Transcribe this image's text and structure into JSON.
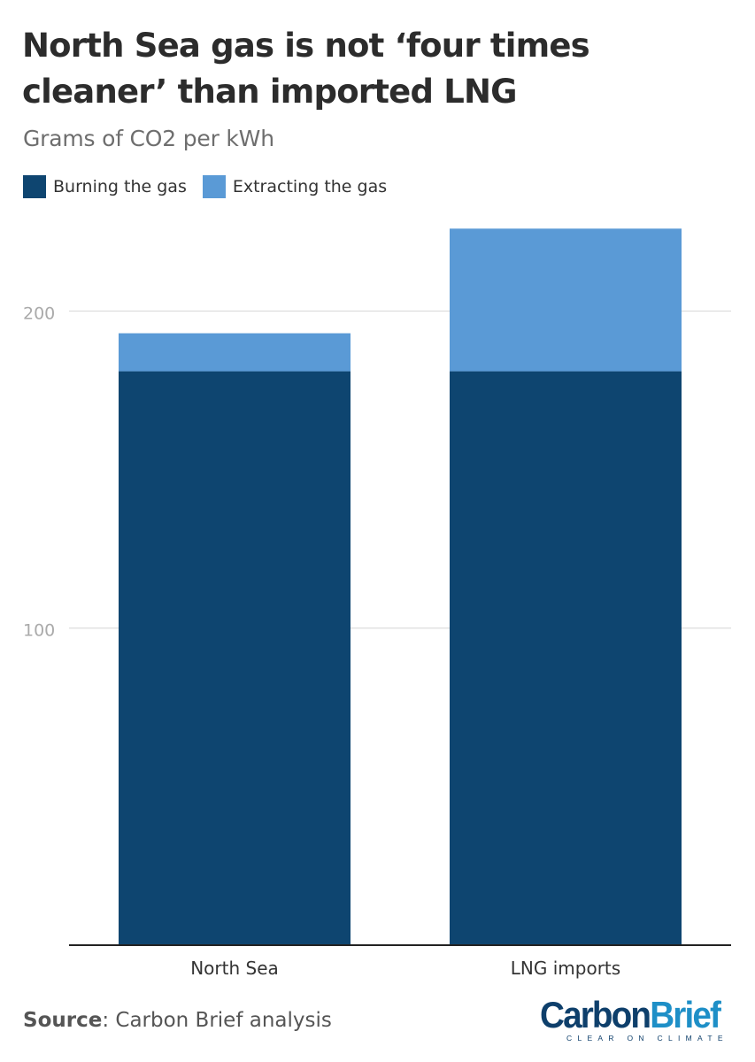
{
  "header": {
    "title": "North Sea gas is not ‘four times cleaner’ than imported LNG",
    "subtitle": "Grams of CO2 per kWh"
  },
  "legend": [
    {
      "label": "Burning the gas",
      "color": "#0e4570"
    },
    {
      "label": "Extracting the gas",
      "color": "#5a9ad6"
    }
  ],
  "chart_data": {
    "type": "bar",
    "stacked": true,
    "categories": [
      "North Sea",
      "LNG imports"
    ],
    "series": [
      {
        "name": "Burning the gas",
        "values": [
          181,
          181
        ],
        "color": "#0e4570"
      },
      {
        "name": "Extracting the gas",
        "values": [
          12,
          45
        ],
        "color": "#5a9ad6"
      }
    ],
    "ylim": [
      0,
      230
    ],
    "yticks": [
      100,
      200
    ],
    "grid": true,
    "legend_position": "top-left"
  },
  "footer": {
    "source_label": "Source",
    "source_text": ": Carbon Brief analysis"
  },
  "logo": {
    "carbon": "Carbon",
    "brief": "Brief",
    "tagline": "CLEAR ON CLIMATE"
  }
}
